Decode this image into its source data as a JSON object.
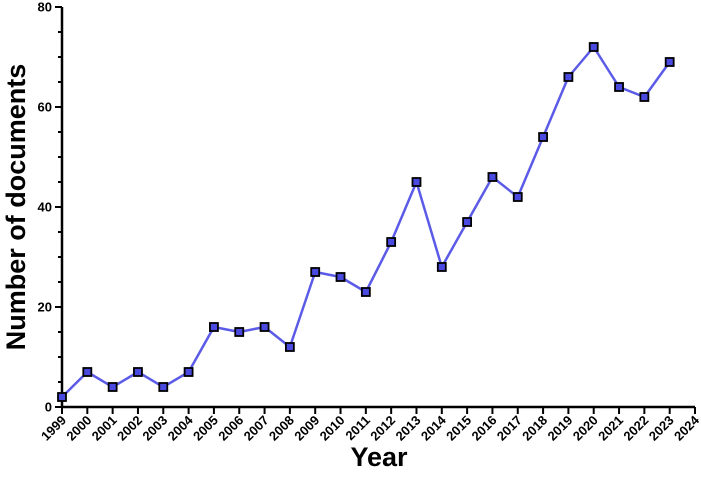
{
  "chart_data": {
    "type": "line",
    "title": "",
    "xlabel": "Year",
    "ylabel": "Number of documents",
    "x_ticks": [
      "1999",
      "2000",
      "2001",
      "2002",
      "2003",
      "2004",
      "2005",
      "2006",
      "2007",
      "2008",
      "2009",
      "2010",
      "2011",
      "2012",
      "2013",
      "2014",
      "2015",
      "2016",
      "2017",
      "2018",
      "2019",
      "2020",
      "2021",
      "2022",
      "2023",
      "2024"
    ],
    "y_ticks": [
      0,
      20,
      40,
      60,
      80
    ],
    "xlim": [
      1999,
      2024
    ],
    "ylim": [
      0,
      80
    ],
    "grid": false,
    "legend": "none",
    "series": [
      {
        "x": [
          1999,
          2000,
          2001,
          2002,
          2003,
          2004,
          2005,
          2006,
          2007,
          2008,
          2009,
          2010,
          2011,
          2012,
          2013,
          2014,
          2015,
          2016,
          2017,
          2018,
          2019,
          2020,
          2021,
          2022,
          2023
        ],
        "values": [
          2,
          7,
          4,
          7,
          4,
          7,
          16,
          15,
          16,
          12,
          27,
          26,
          23,
          33,
          45,
          28,
          37,
          46,
          42,
          54,
          66,
          72,
          64,
          62,
          69
        ],
        "line_color": "#5b5be8",
        "marker": "square",
        "marker_fill": "#4a4ae0",
        "marker_edge": "#000000"
      }
    ]
  }
}
